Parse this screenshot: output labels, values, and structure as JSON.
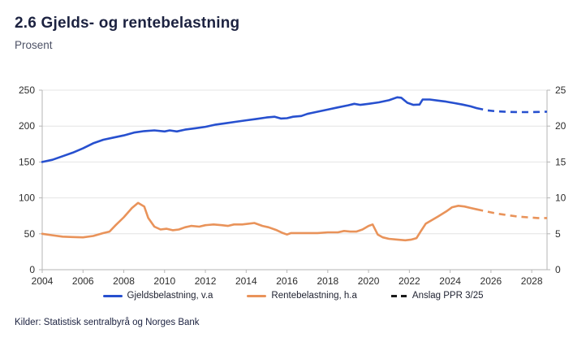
{
  "title": "2.6 Gjelds- og rentebelastning",
  "subtitle": "Prosent",
  "source": "Kilder: Statistisk sentralbyrå og Norges Bank",
  "colors": {
    "debt": "#2750cf",
    "interest": "#e9935a",
    "forecast_legend": "#1a1a1a",
    "grid": "#e4e4e4",
    "axis": "#b5b5b5",
    "tick_text": "#2d2d2d"
  },
  "chart_data": {
    "type": "line",
    "title": "2.6 Gjelds- og rentebelastning",
    "subtitle": "Prosent",
    "grid": true,
    "legend_position": "bottom",
    "x_range": [
      2004,
      2028.75
    ],
    "x_ticks": [
      2004,
      2006,
      2008,
      2010,
      2012,
      2014,
      2016,
      2018,
      2020,
      2022,
      2024,
      2026,
      2028
    ],
    "left_axis": {
      "label": "",
      "ticks": [
        0,
        50,
        100,
        150,
        200,
        250
      ],
      "range": [
        0,
        250
      ]
    },
    "right_axis": {
      "label": "",
      "ticks": [
        0,
        5,
        10,
        15,
        20,
        25
      ],
      "range": [
        0,
        25
      ]
    },
    "series": [
      {
        "name": "Gjeldsbelastning, v.a",
        "axis": "left",
        "color_key": "debt",
        "solid": {
          "x": [
            2004,
            2004.5,
            2005,
            2005.5,
            2006,
            2006.5,
            2007,
            2007.5,
            2008,
            2008.5,
            2009,
            2009.5,
            2010,
            2010.25,
            2010.6,
            2011,
            2011.5,
            2012,
            2012.5,
            2013,
            2013.5,
            2014,
            2014.5,
            2015,
            2015.4,
            2015.7,
            2016,
            2016.3,
            2016.7,
            2017,
            2017.5,
            2018,
            2018.5,
            2019,
            2019.3,
            2019.6,
            2020,
            2020.5,
            2021,
            2021.4,
            2021.6,
            2021.9,
            2022.2,
            2022.5,
            2022.65,
            2023,
            2023.4,
            2023.8,
            2024.2,
            2024.6,
            2025,
            2025.3
          ],
          "y": [
            150,
            153,
            158,
            163,
            169,
            176,
            181,
            184,
            187,
            191,
            193,
            194,
            192.5,
            194,
            192.5,
            195,
            197,
            199,
            202,
            204,
            206,
            208,
            210,
            212,
            213,
            210.5,
            211,
            213,
            214,
            217,
            220,
            223,
            226,
            229,
            231,
            229.5,
            231,
            233,
            236,
            240,
            239.5,
            232.5,
            229.5,
            230,
            237,
            237,
            235.5,
            234,
            232,
            230,
            227.5,
            225
          ]
        },
        "forecast": {
          "x": [
            2025.3,
            2025.8,
            2026.3,
            2026.8,
            2027.3,
            2027.8,
            2028.3,
            2028.75
          ],
          "y": [
            225,
            222,
            220.5,
            219.8,
            219.5,
            219.5,
            219.7,
            220
          ]
        }
      },
      {
        "name": "Rentebelastning, h.a",
        "axis": "right",
        "color_key": "interest",
        "solid": {
          "x": [
            2004,
            2004.5,
            2005,
            2005.5,
            2006,
            2006.5,
            2007,
            2007.3,
            2007.6,
            2008,
            2008.4,
            2008.7,
            2009,
            2009.2,
            2009.5,
            2009.8,
            2010.1,
            2010.4,
            2010.7,
            2011,
            2011.3,
            2011.7,
            2012,
            2012.4,
            2012.8,
            2013.1,
            2013.4,
            2013.8,
            2014.1,
            2014.4,
            2014.8,
            2015.1,
            2015.5,
            2015.8,
            2016,
            2016.2,
            2016.6,
            2017,
            2017.5,
            2018,
            2018.5,
            2018.8,
            2019.1,
            2019.4,
            2019.7,
            2020,
            2020.2,
            2020.45,
            2020.7,
            2021,
            2021.4,
            2021.8,
            2022.1,
            2022.35,
            2022.55,
            2022.8,
            2023.1,
            2023.4,
            2023.8,
            2024.1,
            2024.4,
            2024.7,
            2025,
            2025.3
          ],
          "y": [
            5.0,
            4.8,
            4.6,
            4.55,
            4.5,
            4.7,
            5.1,
            5.3,
            6.2,
            7.3,
            8.6,
            9.3,
            8.8,
            7.2,
            6.0,
            5.6,
            5.7,
            5.5,
            5.6,
            5.9,
            6.1,
            6.0,
            6.2,
            6.3,
            6.2,
            6.1,
            6.3,
            6.3,
            6.4,
            6.5,
            6.1,
            5.9,
            5.5,
            5.1,
            4.9,
            5.1,
            5.1,
            5.1,
            5.1,
            5.2,
            5.2,
            5.4,
            5.3,
            5.3,
            5.6,
            6.1,
            6.3,
            4.9,
            4.5,
            4.3,
            4.2,
            4.1,
            4.2,
            4.4,
            5.3,
            6.4,
            6.9,
            7.4,
            8.1,
            8.7,
            8.9,
            8.8,
            8.6,
            8.4
          ]
        },
        "forecast": {
          "x": [
            2025.3,
            2025.8,
            2026.3,
            2026.8,
            2027.3,
            2027.8,
            2028.3,
            2028.75
          ],
          "y": [
            8.4,
            8.1,
            7.8,
            7.6,
            7.4,
            7.3,
            7.2,
            7.2
          ]
        }
      }
    ],
    "legend": [
      {
        "label": "Gjeldsbelastning, v.a",
        "marker": "solid",
        "color_key": "debt"
      },
      {
        "label": "Rentebelastning, h.a",
        "marker": "solid",
        "color_key": "interest"
      },
      {
        "label": "Anslag PPR 3/25",
        "marker": "dashed",
        "color_key": "forecast_legend"
      }
    ]
  }
}
